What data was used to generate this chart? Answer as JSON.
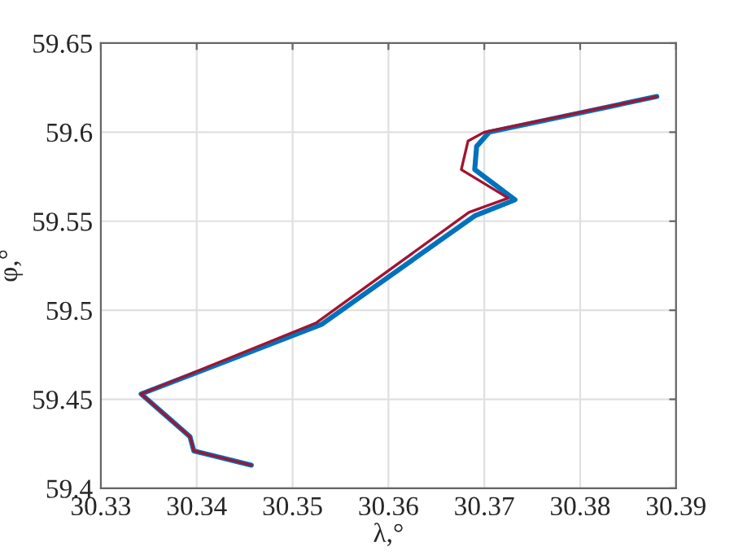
{
  "chart_data": {
    "type": "line",
    "xlabel": "λ,°",
    "ylabel": "φ,°",
    "xlim": [
      30.33,
      30.39
    ],
    "ylim": [
      59.4,
      59.65
    ],
    "xticks": [
      30.33,
      30.34,
      30.35,
      30.36,
      30.37,
      30.38,
      30.39
    ],
    "yticks": [
      59.4,
      59.45,
      59.5,
      59.55,
      59.6,
      59.65
    ],
    "grid": true,
    "series": [
      {
        "color": "#0072bd",
        "x": [
          30.388,
          30.3705,
          30.3692,
          30.369,
          30.3732,
          30.369,
          30.353,
          30.3342,
          30.3393,
          30.3397,
          30.3457
        ],
        "values": [
          59.62,
          59.6,
          59.592,
          59.579,
          59.562,
          59.553,
          59.492,
          59.453,
          59.429,
          59.421,
          59.413
        ]
      },
      {
        "color": "#a2142f",
        "x": [
          30.388,
          30.37,
          30.3683,
          30.3676,
          30.3725,
          30.3684,
          30.3525,
          30.3342,
          30.3393,
          30.3397,
          30.3457
        ],
        "values": [
          59.62,
          59.6,
          59.595,
          59.579,
          59.563,
          59.555,
          59.493,
          59.453,
          59.429,
          59.421,
          59.413
        ]
      }
    ]
  }
}
